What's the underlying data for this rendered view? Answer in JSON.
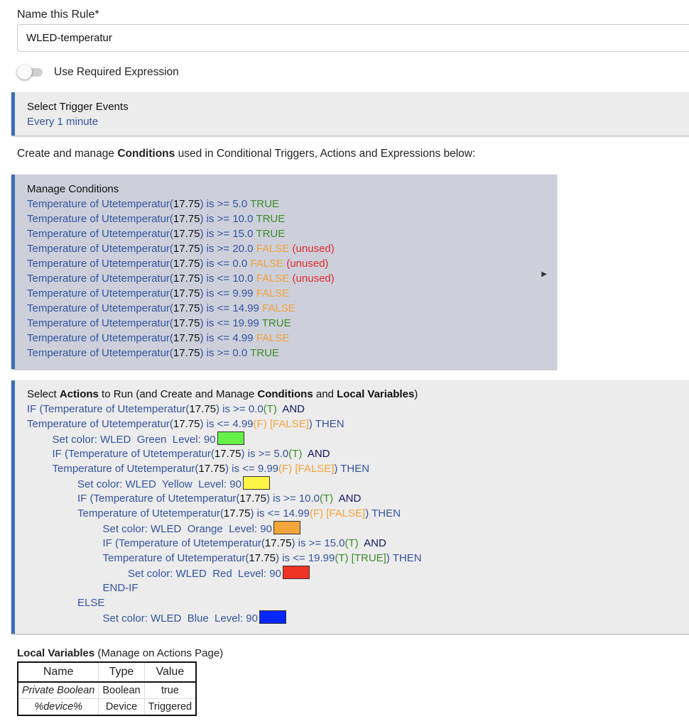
{
  "name_field": {
    "label": "Name this Rule*",
    "value": "WLED-temperatur"
  },
  "required_expression": {
    "label": "Use Required Expression",
    "enabled": false
  },
  "trigger": {
    "title": "Select Trigger Events",
    "value": "Every 1 minute"
  },
  "description": {
    "pre": "Create and manage ",
    "bold": "Conditions",
    "post": " used in Conditional Triggers, Actions and Expressions below:"
  },
  "conditions": {
    "title": "Manage Conditions",
    "expand_icon": "triangle-right-icon",
    "lines": [
      [
        [
          "Temperature of Utetemperatur(",
          "b"
        ],
        [
          "17.75",
          "k"
        ],
        [
          ") is >= 5.0 ",
          "b"
        ],
        [
          "TRUE",
          "g"
        ]
      ],
      [
        [
          "Temperature of Utetemperatur(",
          "b"
        ],
        [
          "17.75",
          "k"
        ],
        [
          ") is >= 10.0 ",
          "b"
        ],
        [
          "TRUE",
          "g"
        ]
      ],
      [
        [
          "Temperature of Utetemperatur(",
          "b"
        ],
        [
          "17.75",
          "k"
        ],
        [
          ") is >= 15.0 ",
          "b"
        ],
        [
          "TRUE",
          "g"
        ]
      ],
      [
        [
          "Temperature of Utetemperatur(",
          "b"
        ],
        [
          "17.75",
          "k"
        ],
        [
          ") is >= 20.0 ",
          "b"
        ],
        [
          "FALSE",
          "o"
        ],
        [
          " (unused)",
          "r"
        ]
      ],
      [
        [
          "Temperature of Utetemperatur(",
          "b"
        ],
        [
          "17.75",
          "k"
        ],
        [
          ") is <= 0.0 ",
          "b"
        ],
        [
          "FALSE",
          "o"
        ],
        [
          " (unused)",
          "r"
        ]
      ],
      [
        [
          "Temperature of Utetemperatur(",
          "b"
        ],
        [
          "17.75",
          "k"
        ],
        [
          ") is <= 10.0 ",
          "b"
        ],
        [
          "FALSE",
          "o"
        ],
        [
          " (unused)",
          "r"
        ]
      ],
      [
        [
          "Temperature of Utetemperatur(",
          "b"
        ],
        [
          "17.75",
          "k"
        ],
        [
          ") is <= 9.99 ",
          "b"
        ],
        [
          "FALSE",
          "o"
        ]
      ],
      [
        [
          "Temperature of Utetemperatur(",
          "b"
        ],
        [
          "17.75",
          "k"
        ],
        [
          ") is <= 14.99 ",
          "b"
        ],
        [
          "FALSE",
          "o"
        ]
      ],
      [
        [
          "Temperature of Utetemperatur(",
          "b"
        ],
        [
          "17.75",
          "k"
        ],
        [
          ") is <= 19.99 ",
          "b"
        ],
        [
          "TRUE",
          "g"
        ]
      ],
      [
        [
          "Temperature of Utetemperatur(",
          "b"
        ],
        [
          "17.75",
          "k"
        ],
        [
          ") is <= 4.99 ",
          "b"
        ],
        [
          "FALSE",
          "o"
        ]
      ],
      [
        [
          "Temperature of Utetemperatur(",
          "b"
        ],
        [
          "17.75",
          "k"
        ],
        [
          ") is >= 0.0 ",
          "b"
        ],
        [
          "TRUE",
          "g"
        ]
      ]
    ]
  },
  "actions": {
    "title": {
      "p1": "Select ",
      "b1": "Actions",
      "p2": " to Run (and Create and Manage ",
      "b2": "Conditions",
      "p3": " and ",
      "b3": "Local Variables",
      "p4": ")"
    },
    "lines": [
      {
        "indent": 0,
        "segs": [
          [
            "IF (Temperature of Utetemperatur(",
            "b"
          ],
          [
            "17.75",
            "k"
          ],
          [
            ") is >= 0.0",
            "b"
          ],
          [
            "(T)",
            "g"
          ],
          [
            "  AND",
            "n"
          ]
        ]
      },
      {
        "indent": 0,
        "segs": [
          [
            "Temperature of Utetemperatur(",
            "b"
          ],
          [
            "17.75",
            "k"
          ],
          [
            ") is <= 4.99",
            "b"
          ],
          [
            "(F) [FALSE]",
            "o"
          ],
          [
            ") THEN",
            "b"
          ]
        ]
      },
      {
        "indent": 1,
        "segs": [
          [
            "Set color: WLED  Green  Level: 90",
            "b"
          ]
        ],
        "swatch": "#66f14a"
      },
      {
        "indent": 1,
        "segs": [
          [
            "IF (Temperature of Utetemperatur(",
            "b"
          ],
          [
            "17.75",
            "k"
          ],
          [
            ") is >= 5.0",
            "b"
          ],
          [
            "(T)",
            "g"
          ],
          [
            "  AND",
            "n"
          ]
        ]
      },
      {
        "indent": 1,
        "segs": [
          [
            "Temperature of Utetemperatur(",
            "b"
          ],
          [
            "17.75",
            "k"
          ],
          [
            ") is <= 9.99",
            "b"
          ],
          [
            "(F) [FALSE]",
            "o"
          ],
          [
            ") THEN",
            "b"
          ]
        ]
      },
      {
        "indent": 2,
        "segs": [
          [
            "Set color: WLED  Yellow  Level: 90",
            "b"
          ]
        ],
        "swatch": "#fdf545"
      },
      {
        "indent": 2,
        "segs": [
          [
            "IF (Temperature of Utetemperatur(",
            "b"
          ],
          [
            "17.75",
            "k"
          ],
          [
            ") is >= 10.0",
            "b"
          ],
          [
            "(T)",
            "g"
          ],
          [
            "  AND",
            "n"
          ]
        ]
      },
      {
        "indent": 2,
        "segs": [
          [
            "Temperature of Utetemperatur(",
            "b"
          ],
          [
            "17.75",
            "k"
          ],
          [
            ") is <= 14.99",
            "b"
          ],
          [
            "(F) [FALSE]",
            "o"
          ],
          [
            ") THEN",
            "b"
          ]
        ]
      },
      {
        "indent": 3,
        "segs": [
          [
            "Set color: WLED  Orange  Level: 90",
            "b"
          ]
        ],
        "swatch": "#f2a53a"
      },
      {
        "indent": 3,
        "segs": [
          [
            "IF (Temperature of Utetemperatur(",
            "b"
          ],
          [
            "17.75",
            "k"
          ],
          [
            ") is >= 15.0",
            "b"
          ],
          [
            "(T)",
            "g"
          ],
          [
            "  AND",
            "n"
          ]
        ]
      },
      {
        "indent": 3,
        "segs": [
          [
            "Temperature of Utetemperatur(",
            "b"
          ],
          [
            "17.75",
            "k"
          ],
          [
            ") is <= 19.99",
            "b"
          ],
          [
            "(T) [TRUE]",
            "g"
          ],
          [
            ") THEN",
            "b"
          ]
        ]
      },
      {
        "indent": 4,
        "segs": [
          [
            "Set color: WLED  Red  Level: 90",
            "b"
          ]
        ],
        "swatch": "#ee3324"
      },
      {
        "indent": 3,
        "segs": [
          [
            "END-IF",
            "b"
          ]
        ]
      },
      {
        "indent": 2,
        "segs": [
          [
            "ELSE",
            "b"
          ]
        ]
      },
      {
        "indent": 3,
        "segs": [
          [
            "Set color: WLED  Blue  Level: 90",
            "b"
          ]
        ],
        "swatch": "#0727fb"
      }
    ]
  },
  "local_variables": {
    "title_bold": "Local Variables",
    "title_rest": " (Manage on Actions Page)",
    "headers": [
      "Name",
      "Type",
      "Value"
    ],
    "rows": [
      [
        "Private Boolean",
        "Boolean",
        "true"
      ],
      [
        "%device%",
        "Device",
        "Triggered"
      ]
    ]
  }
}
